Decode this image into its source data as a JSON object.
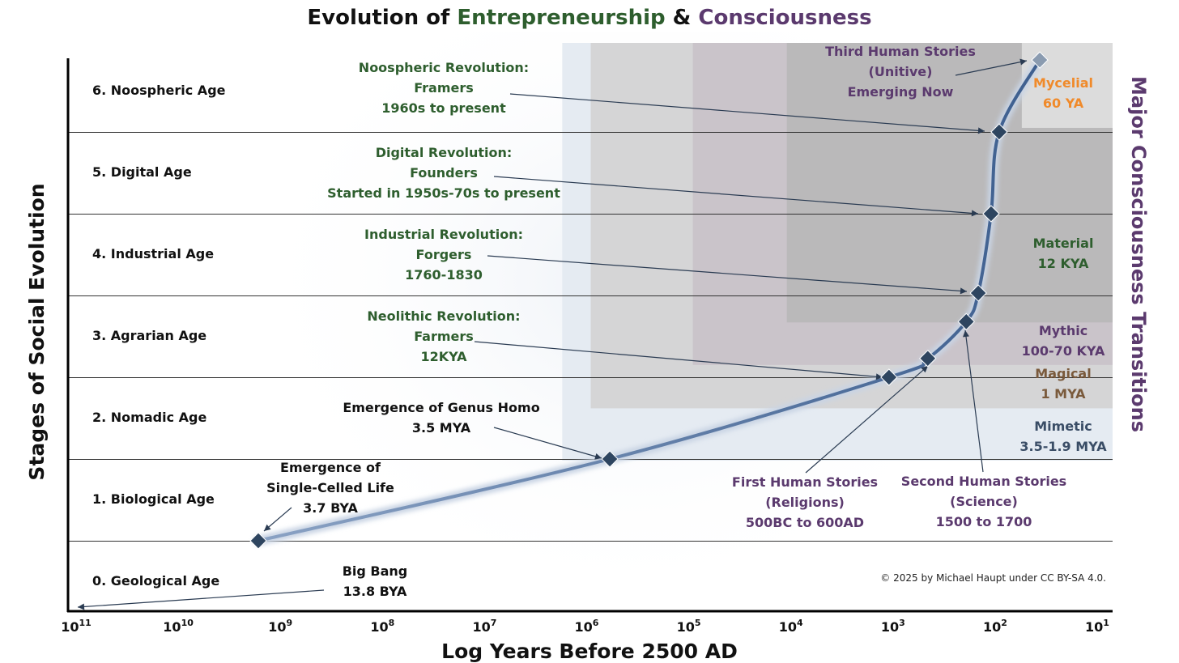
{
  "chart_data": {
    "type": "line",
    "title": {
      "part1": "Evolution of ",
      "part2": "Entrepreneurship",
      "part3": " & ",
      "part4": "Consciousness"
    },
    "xlabel": "Log Years Before 2500 AD",
    "ylabel": "Stages of Social Evolution",
    "right_label": "Major Consciousness Transitions",
    "x_scale": "log",
    "x_reversed": true,
    "xlim": [
      100000000000,
      10
    ],
    "x_ticks": [
      {
        "base": "10",
        "exp": "11",
        "value": 100000000000
      },
      {
        "base": "10",
        "exp": "10",
        "value": 10000000000
      },
      {
        "base": "10",
        "exp": "9",
        "value": 1000000000
      },
      {
        "base": "10",
        "exp": "8",
        "value": 100000000
      },
      {
        "base": "10",
        "exp": "7",
        "value": 10000000
      },
      {
        "base": "10",
        "exp": "6",
        "value": 1000000
      },
      {
        "base": "10",
        "exp": "5",
        "value": 100000
      },
      {
        "base": "10",
        "exp": "4",
        "value": 10000
      },
      {
        "base": "10",
        "exp": "3",
        "value": 1000
      },
      {
        "base": "10",
        "exp": "2",
        "value": 100
      },
      {
        "base": "10",
        "exp": "1",
        "value": 10
      }
    ],
    "ylim": [
      0,
      7
    ],
    "grid": "horizontal stage dividers",
    "stages": [
      {
        "label": "0. Geological Age"
      },
      {
        "label": "1. Biological Age"
      },
      {
        "label": "2. Nomadic Age"
      },
      {
        "label": "3. Agrarian Age"
      },
      {
        "label": "4. Industrial Age"
      },
      {
        "label": "5. Digital Age"
      },
      {
        "label": "6. Noospheric Age"
      }
    ],
    "series": [
      {
        "points": [
          {
            "x": 1800000000,
            "y": 1
          },
          {
            "x": 650000,
            "y": 2
          },
          {
            "x": 1200,
            "y": 3
          },
          {
            "x": 500,
            "y": 3.23
          },
          {
            "x": 210,
            "y": 3.68
          },
          {
            "x": 160,
            "y": 4.03
          },
          {
            "x": 120,
            "y": 5
          },
          {
            "x": 100,
            "y": 6
          },
          {
            "x": 40,
            "y": 6.88,
            "emerging": true
          }
        ]
      }
    ],
    "consciousness_bands": [
      {
        "name": "Mimetic",
        "range": "3.5-1.9 MYA",
        "color": "#3a4d66",
        "x_from": 1900000,
        "y_from": 1.98,
        "fill": "#e4eaf1"
      },
      {
        "name": "Magical",
        "range": "1 MYA",
        "color": "#7a5a3c",
        "x_from": 1000000,
        "y_from": 2.62,
        "fill": "#d3d3d3"
      },
      {
        "name": "Mythic",
        "range": "100-70 KYA",
        "color": "#5b3a6e",
        "x_from": 100000,
        "y_from": 3.15,
        "fill": "#c9c2c9"
      },
      {
        "name": "Material",
        "range": "12 KYA",
        "color": "#2e5e2e",
        "x_from": 12000,
        "y_from": 3.67,
        "fill": "#b8b8b8"
      },
      {
        "name": "Mycelial",
        "range": "60 YA",
        "color": "#f08a2a",
        "x_from": 60,
        "y_from": 6.05,
        "fill": "#e0e0e0"
      }
    ],
    "annotations": [
      {
        "key": "bigbang",
        "lines": [
          "Big Bang",
          "13.8 BYA"
        ],
        "color": "#111111"
      },
      {
        "key": "cells",
        "lines": [
          "Emergence of",
          "Single-Celled Life",
          "3.7 BYA"
        ],
        "color": "#111111"
      },
      {
        "key": "homo",
        "lines": [
          "Emergence of Genus Homo",
          "3.5 MYA"
        ],
        "color": "#111111"
      },
      {
        "key": "neolithic",
        "lines": [
          "Neolithic Revolution:",
          "Farmers",
          "12KYA"
        ],
        "color": "#2e5e2e"
      },
      {
        "key": "industrial",
        "lines": [
          "Industrial Revolution:",
          "Forgers",
          "1760-1830"
        ],
        "color": "#2e5e2e"
      },
      {
        "key": "digital",
        "lines": [
          "Digital Revolution:",
          "Founders",
          "Started in 1950s-70s to present"
        ],
        "color": "#2e5e2e"
      },
      {
        "key": "noospheric",
        "lines": [
          "Noospheric Revolution:",
          "Framers",
          "1960s to present"
        ],
        "color": "#2e5e2e"
      },
      {
        "key": "first",
        "lines": [
          "First Human Stories",
          "(Religions)",
          "500BC to 600AD"
        ],
        "color": "#5b3a6e"
      },
      {
        "key": "second",
        "lines": [
          "Second Human Stories",
          "(Science)",
          "1500 to 1700"
        ],
        "color": "#5b3a6e"
      },
      {
        "key": "third",
        "lines": [
          "Third Human Stories",
          "(Unitive)",
          "Emerging Now"
        ],
        "color": "#5b3a6e"
      }
    ],
    "copyright": "© 2025 by Michael Haupt under CC BY-SA 4.0.",
    "colors": {
      "entrepreneurship": "#2e5e2e",
      "consciousness": "#5b3a6e",
      "curve": "#4a6a9a",
      "marker": "#2e4560",
      "emerging_marker": "#8a9bb0"
    }
  }
}
